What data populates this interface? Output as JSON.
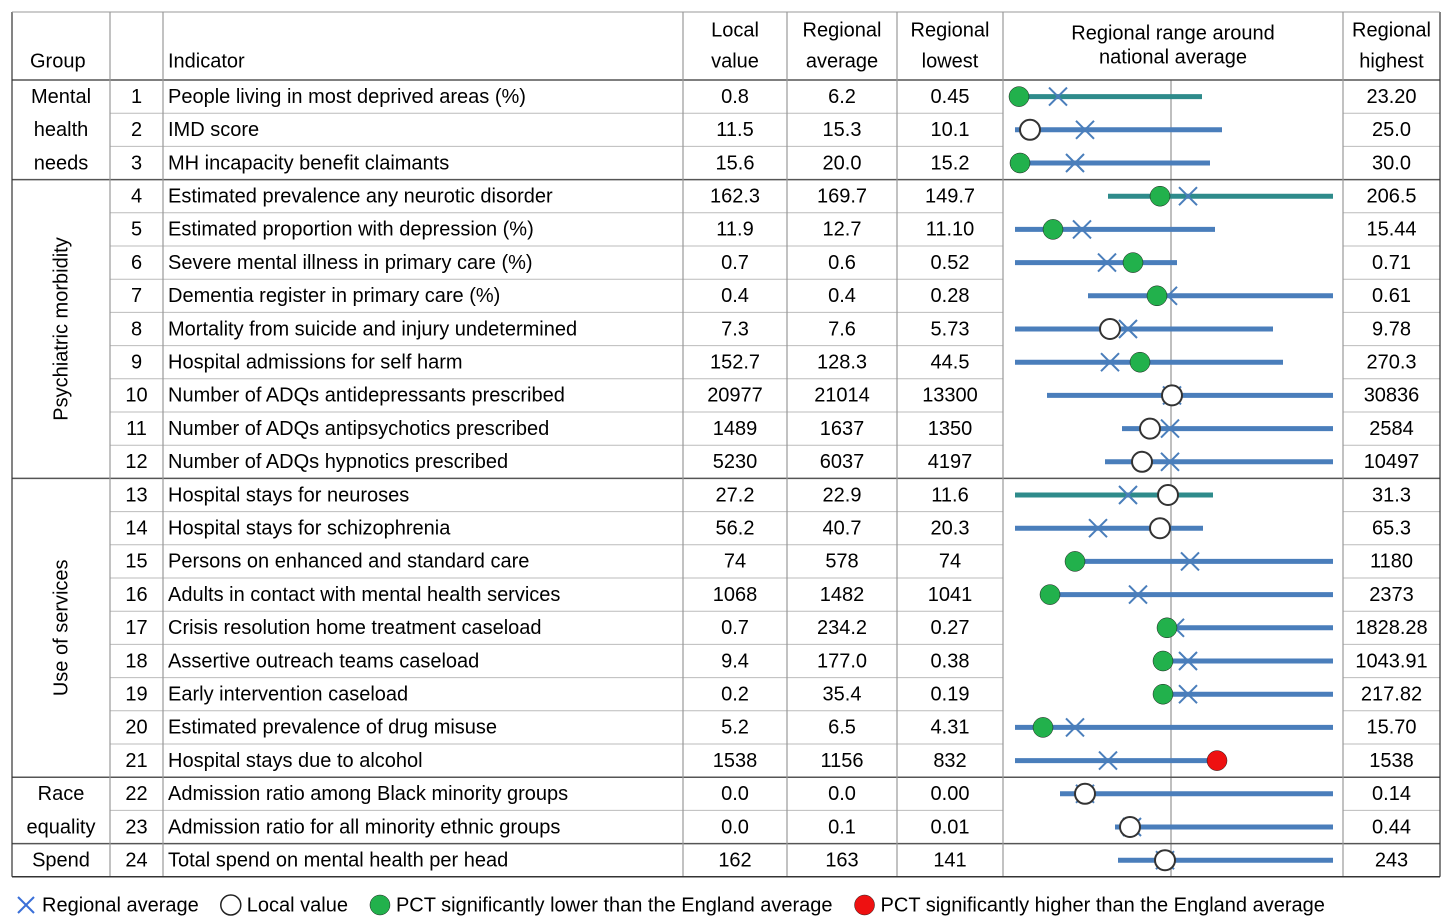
{
  "header": {
    "columns": [
      [
        "Group"
      ],
      [],
      [
        "Indicator"
      ],
      [
        "Local",
        "value"
      ],
      [
        "Regional",
        "average"
      ],
      [
        "Regional",
        "lowest"
      ],
      [
        "Regional range around",
        "national average"
      ],
      [
        "Regional",
        "highest"
      ]
    ]
  },
  "groups": [
    {
      "lines": [
        "Mental",
        "health",
        "needs"
      ],
      "rows": [
        [
          "1",
          "People living in most deprived areas (%)",
          "0.8",
          "6.2",
          "0.45",
          "23.20"
        ],
        [
          "2",
          "IMD score",
          "11.5",
          "15.3",
          "10.1",
          "25.0"
        ],
        [
          "3",
          "MH incapacity benefit claimants",
          "15.6",
          "20.0",
          "15.2",
          "30.0"
        ]
      ]
    },
    {
      "lines": [
        "Psychiatric morbidity"
      ],
      "rows": [
        [
          "4",
          "Estimated prevalence any neurotic disorder",
          "162.3",
          "169.7",
          "149.7",
          "206.5"
        ],
        [
          "5",
          "Estimated proportion with depression (%)",
          "11.9",
          "12.7",
          "11.10",
          "15.44"
        ],
        [
          "6",
          "Severe mental illness in primary care (%)",
          "0.7",
          "0.6",
          "0.52",
          "0.71"
        ],
        [
          "7",
          "Dementia register in primary care (%)",
          "0.4",
          "0.4",
          "0.28",
          "0.61"
        ],
        [
          "8",
          "Mortality from suicide and injury undetermined",
          "7.3",
          "7.6",
          "5.73",
          "9.78"
        ],
        [
          "9",
          "Hospital admissions for self harm",
          "152.7",
          "128.3",
          "44.5",
          "270.3"
        ],
        [
          "10",
          "Number of ADQs antidepressants prescribed",
          "20977",
          "21014",
          "13300",
          "30836"
        ],
        [
          "11",
          "Number of ADQs antipsychotics prescribed",
          "1489",
          "1637",
          "1350",
          "2584"
        ],
        [
          "12",
          "Number of ADQs hypnotics prescribed",
          "5230",
          "6037",
          "4197",
          "10497"
        ]
      ]
    },
    {
      "lines": [
        "Use of services"
      ],
      "rows": [
        [
          "13",
          "Hospital stays for neuroses",
          "27.2",
          "22.9",
          "11.6",
          "31.3"
        ],
        [
          "14",
          "Hospital stays for schizophrenia",
          "56.2",
          "40.7",
          "20.3",
          "65.3"
        ],
        [
          "15",
          "Persons on enhanced and standard care",
          "74",
          "578",
          "74",
          "1180"
        ],
        [
          "16",
          "Adults in contact with mental health services",
          "1068",
          "1482",
          "1041",
          "2373"
        ],
        [
          "17",
          "Crisis resolution home treatment caseload",
          "0.7",
          "234.2",
          "0.27",
          "1828.28"
        ],
        [
          "18",
          "Assertive outreach teams caseload",
          "9.4",
          "177.0",
          "0.38",
          "1043.91"
        ],
        [
          "19",
          "Early intervention caseload",
          "0.2",
          "35.4",
          "0.19",
          "217.82"
        ],
        [
          "20",
          "Estimated prevalence of drug misuse",
          "5.2",
          "6.5",
          "4.31",
          "15.70"
        ],
        [
          "21",
          "Hospital stays due to alcohol",
          "1538",
          "1156",
          "832",
          "1538"
        ]
      ]
    },
    {
      "lines": [
        "Race",
        "equality"
      ],
      "rows": [
        [
          "22",
          "Admission ratio among Black minority groups",
          "0.0",
          "0.0",
          "0.00",
          "0.14"
        ],
        [
          "23",
          "Admission ratio for all minority ethnic groups",
          "0.0",
          "0.1",
          "0.01",
          "0.44"
        ]
      ]
    },
    {
      "lines": [
        "Spend"
      ],
      "rows": [
        [
          "24",
          "Total spend on mental health per head",
          "162",
          "163",
          "141",
          "243"
        ]
      ]
    }
  ],
  "legend": [
    "Regional average",
    "Local value",
    "PCT significantly lower than the England average",
    "PCT significantly higher than the England average"
  ]
}
